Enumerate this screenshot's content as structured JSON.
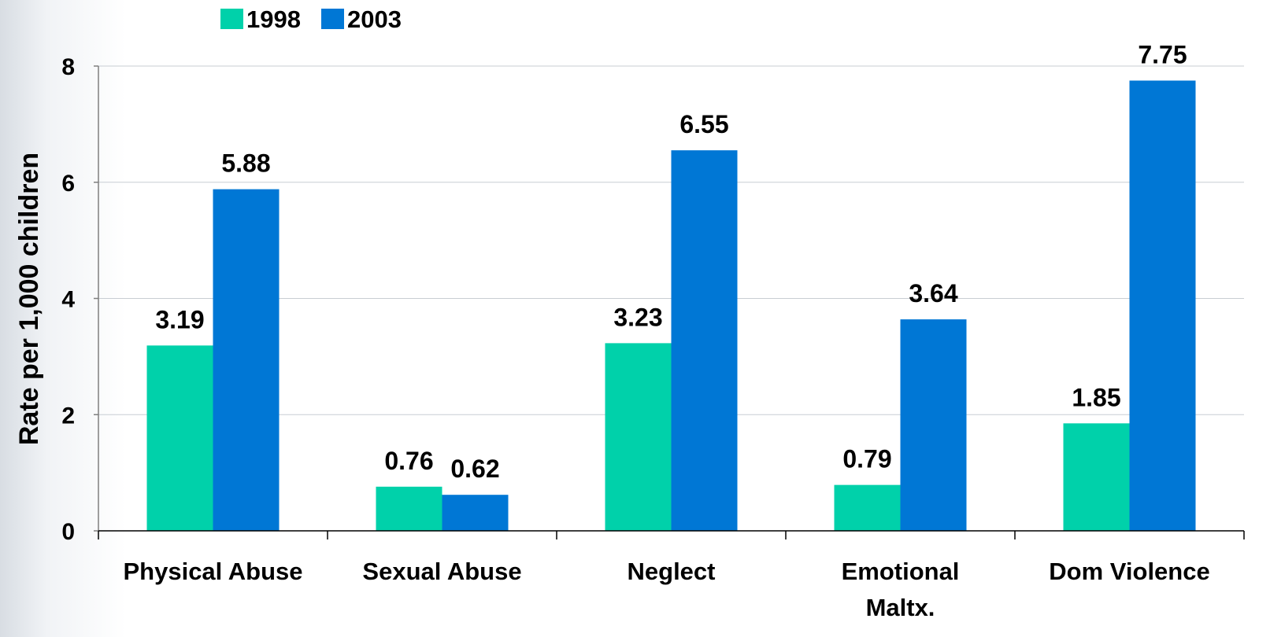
{
  "chart_data": {
    "type": "bar",
    "title": "",
    "xlabel": "",
    "ylabel": "Rate per 1,000 children",
    "ylim": [
      0,
      8
    ],
    "yticks": [
      0,
      2,
      4,
      6,
      8
    ],
    "grid": true,
    "legend_position": "top-left",
    "categories": [
      [
        "Physical Abuse"
      ],
      [
        "Sexual Abuse"
      ],
      [
        "Neglect"
      ],
      [
        "Emotional",
        "Maltx."
      ],
      [
        "Dom Violence"
      ]
    ],
    "series": [
      {
        "name": "1998",
        "color": "#00d1aa",
        "values": [
          3.19,
          0.76,
          3.23,
          0.79,
          1.85
        ]
      },
      {
        "name": "2003",
        "color": "#0077d5",
        "values": [
          5.88,
          0.62,
          6.55,
          3.64,
          7.75
        ]
      }
    ]
  }
}
